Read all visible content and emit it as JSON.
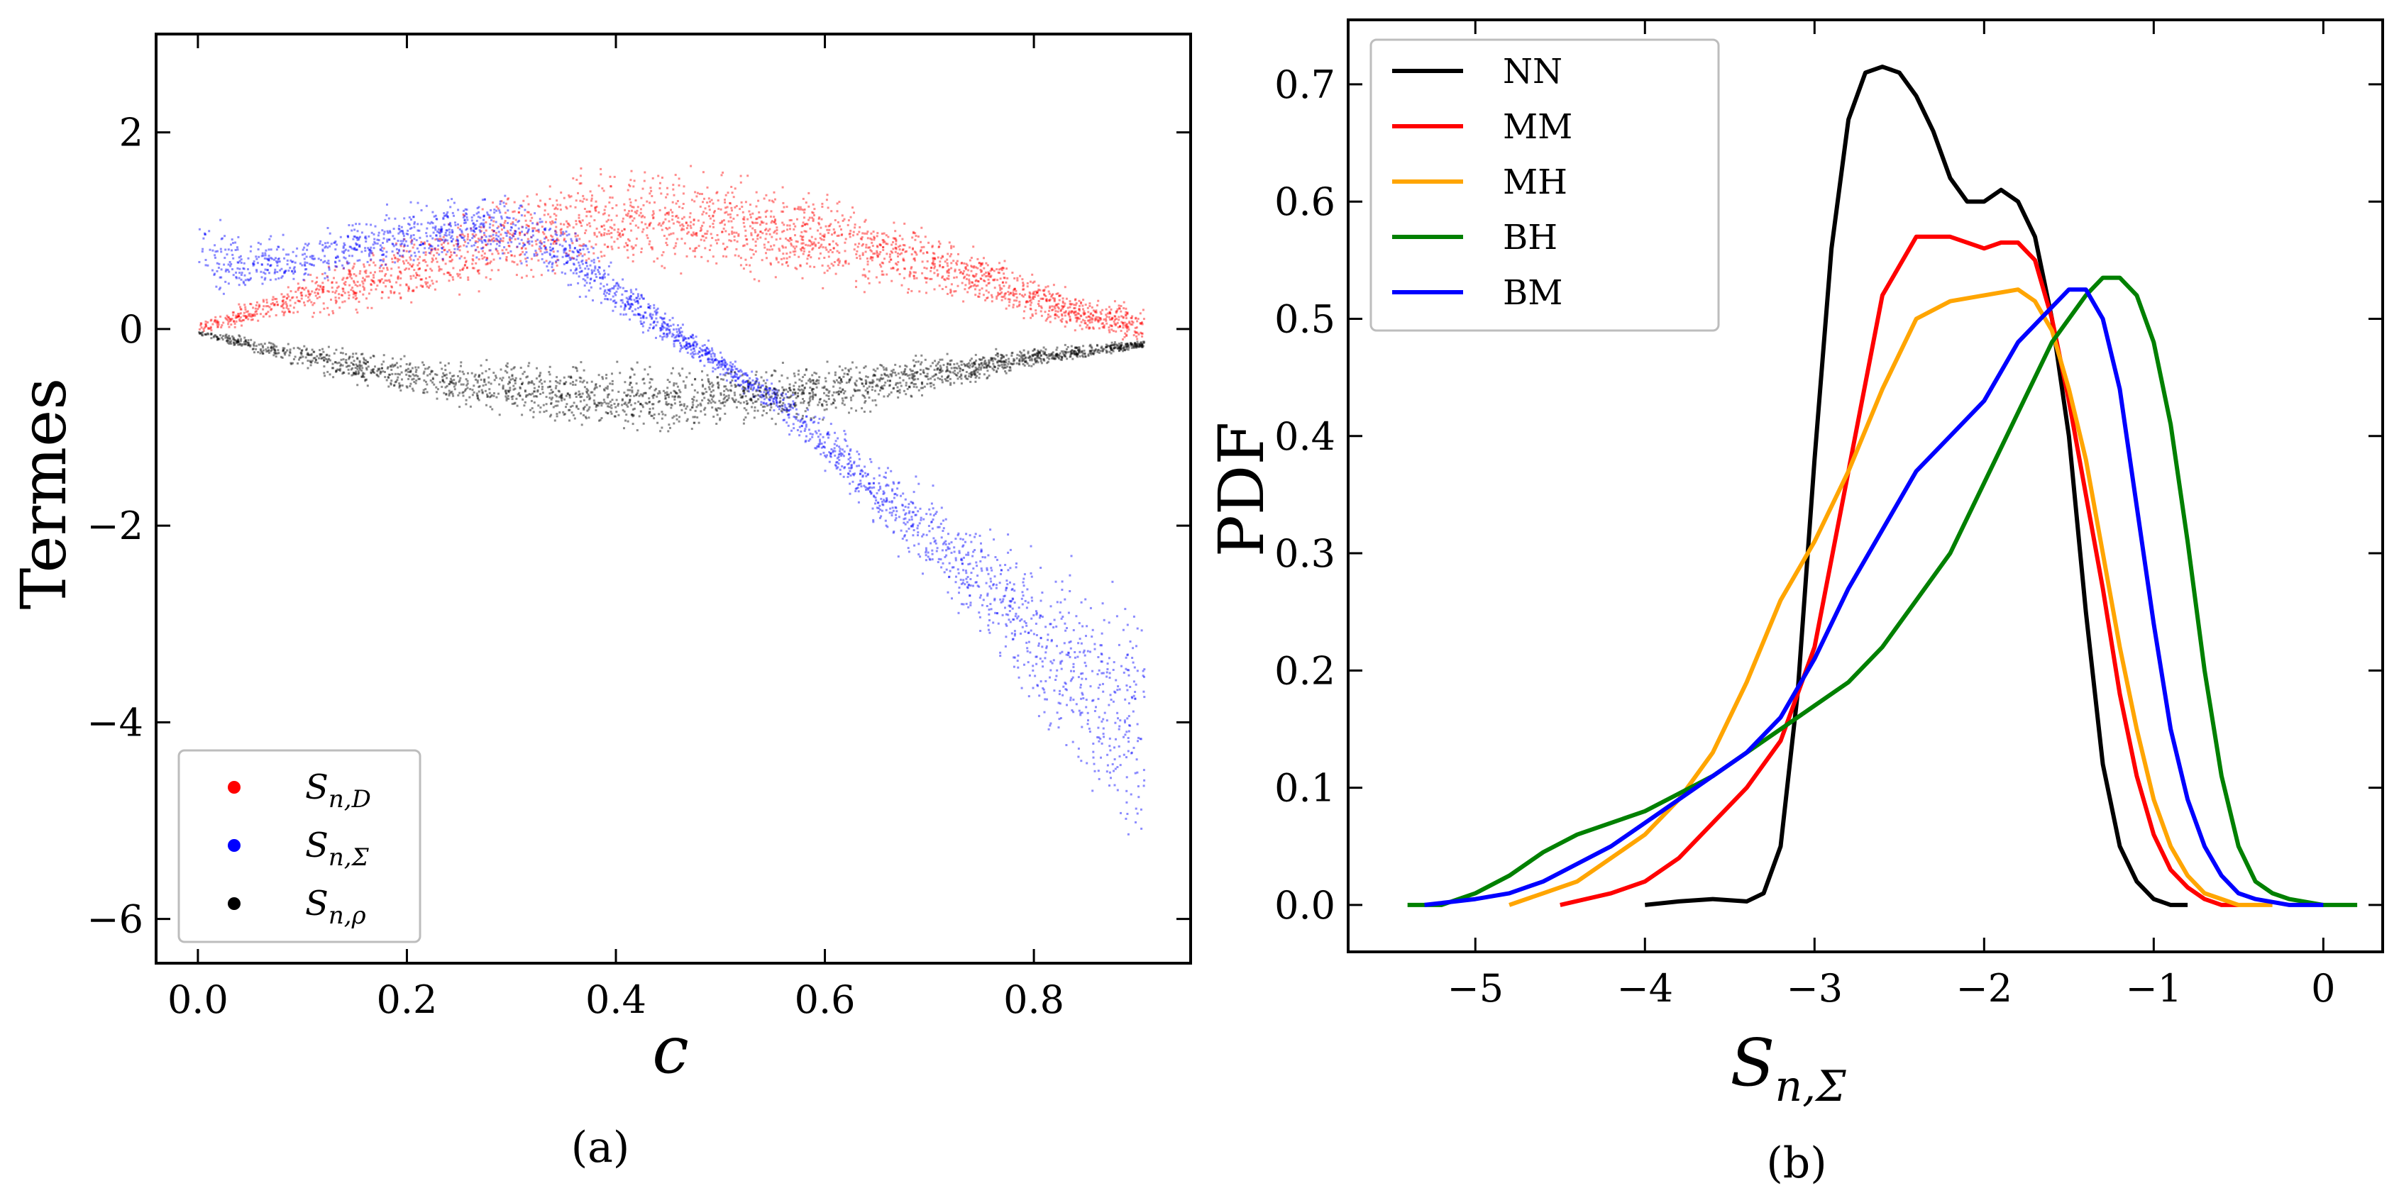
{
  "chart_data": [
    {
      "type": "scatter",
      "caption": "(a)",
      "xlabel": "c",
      "ylabel": "Termes",
      "xlim": [
        -0.04,
        0.95
      ],
      "ylim": [
        -6.45,
        3.0
      ],
      "xticks": [
        0.0,
        0.2,
        0.4,
        0.6,
        0.8
      ],
      "xtick_labels": [
        "0.0",
        "0.2",
        "0.4",
        "0.6",
        "0.8"
      ],
      "yticks": [
        2,
        0,
        -2,
        -4,
        -6
      ],
      "ytick_labels": [
        "2",
        "0",
        "−2",
        "−4",
        "−6"
      ],
      "legend_position": "lower-left",
      "series": [
        {
          "name": "S_{n,D}",
          "label_main": "S",
          "label_sub": "n,D",
          "color": "#ff0000",
          "x": [
            0.0,
            0.05,
            0.1,
            0.15,
            0.2,
            0.25,
            0.3,
            0.35,
            0.4,
            0.45,
            0.5,
            0.55,
            0.6,
            0.65,
            0.7,
            0.75,
            0.8,
            0.85,
            0.9
          ],
          "y_low": [
            -0.05,
            0.0,
            0.05,
            0.1,
            0.15,
            0.25,
            0.35,
            0.4,
            0.45,
            0.45,
            0.45,
            0.4,
            0.35,
            0.3,
            0.25,
            0.2,
            0.05,
            -0.1,
            -0.2
          ],
          "y_high": [
            0.1,
            0.35,
            0.6,
            0.85,
            1.05,
            1.3,
            1.5,
            1.7,
            1.8,
            1.8,
            1.7,
            1.6,
            1.5,
            1.3,
            1.1,
            0.9,
            0.6,
            0.4,
            0.3
          ]
        },
        {
          "name": "S_{n,Σ}",
          "label_main": "S",
          "label_sub": "n,Σ",
          "color": "#0000ff",
          "x": [
            0.0,
            0.05,
            0.1,
            0.15,
            0.2,
            0.25,
            0.3,
            0.35,
            0.4,
            0.45,
            0.5,
            0.55,
            0.6,
            0.65,
            0.7,
            0.75,
            0.8,
            0.85,
            0.9
          ],
          "y_low": [
            0.3,
            0.3,
            0.4,
            0.5,
            0.55,
            0.6,
            0.6,
            0.4,
            0.1,
            -0.2,
            -0.5,
            -0.9,
            -1.5,
            -2.1,
            -2.7,
            -3.3,
            -4.2,
            -5.0,
            -5.8
          ],
          "y_high": [
            1.3,
            1.0,
            1.0,
            1.2,
            1.35,
            1.45,
            1.45,
            1.2,
            0.7,
            0.2,
            -0.2,
            -0.5,
            -0.8,
            -1.2,
            -1.5,
            -1.8,
            -2.0,
            -2.2,
            -2.3
          ]
        },
        {
          "name": "S_{n,ρ}",
          "label_main": "S",
          "label_sub": "n,ρ",
          "color": "#000000",
          "x": [
            0.0,
            0.05,
            0.1,
            0.15,
            0.2,
            0.25,
            0.3,
            0.35,
            0.4,
            0.45,
            0.5,
            0.55,
            0.6,
            0.65,
            0.7,
            0.75,
            0.8,
            0.85,
            0.9
          ],
          "y_low": [
            -0.05,
            -0.25,
            -0.45,
            -0.6,
            -0.75,
            -0.85,
            -0.95,
            -1.05,
            -1.1,
            -1.12,
            -1.1,
            -1.05,
            -0.95,
            -0.85,
            -0.7,
            -0.55,
            -0.4,
            -0.3,
            -0.2
          ],
          "y_high": [
            0.0,
            -0.05,
            -0.1,
            -0.15,
            -0.2,
            -0.22,
            -0.25,
            -0.27,
            -0.28,
            -0.28,
            -0.28,
            -0.27,
            -0.25,
            -0.22,
            -0.2,
            -0.17,
            -0.15,
            -0.12,
            -0.1
          ]
        }
      ]
    },
    {
      "type": "line",
      "caption": "(b)",
      "xlabel_main": "S",
      "xlabel_sub": "n,Σ",
      "ylabel": "PDF",
      "xlim": [
        -5.75,
        0.35
      ],
      "ylim": [
        -0.04,
        0.755
      ],
      "xticks": [
        -5,
        -4,
        -3,
        -2,
        -1,
        0
      ],
      "xtick_labels": [
        "−5",
        "−4",
        "−3",
        "−2",
        "−1",
        "0"
      ],
      "yticks": [
        0.0,
        0.1,
        0.2,
        0.3,
        0.4,
        0.5,
        0.6,
        0.7
      ],
      "ytick_labels": [
        "0.0",
        "0.1",
        "0.2",
        "0.3",
        "0.4",
        "0.5",
        "0.6",
        "0.7"
      ],
      "legend_position": "upper-left",
      "series": [
        {
          "name": "NN",
          "color": "#000000",
          "x": [
            -4.0,
            -3.8,
            -3.6,
            -3.4,
            -3.3,
            -3.2,
            -3.1,
            -3.0,
            -2.9,
            -2.8,
            -2.7,
            -2.6,
            -2.5,
            -2.4,
            -2.3,
            -2.2,
            -2.1,
            -2.0,
            -1.9,
            -1.8,
            -1.7,
            -1.6,
            -1.5,
            -1.4,
            -1.3,
            -1.2,
            -1.1,
            -1.0,
            -0.9,
            -0.8
          ],
          "y": [
            0.0,
            0.003,
            0.005,
            0.003,
            0.01,
            0.05,
            0.18,
            0.38,
            0.56,
            0.67,
            0.71,
            0.715,
            0.71,
            0.69,
            0.66,
            0.62,
            0.6,
            0.6,
            0.61,
            0.6,
            0.57,
            0.5,
            0.4,
            0.25,
            0.12,
            0.05,
            0.02,
            0.005,
            0.0,
            0.0
          ]
        },
        {
          "name": "MM",
          "color": "#ff0000",
          "x": [
            -4.5,
            -4.2,
            -4.0,
            -3.8,
            -3.6,
            -3.4,
            -3.2,
            -3.0,
            -2.8,
            -2.6,
            -2.4,
            -2.2,
            -2.0,
            -1.9,
            -1.8,
            -1.7,
            -1.6,
            -1.5,
            -1.4,
            -1.3,
            -1.2,
            -1.1,
            -1.0,
            -0.9,
            -0.8,
            -0.7,
            -0.6,
            -0.5
          ],
          "y": [
            0.0,
            0.01,
            0.02,
            0.04,
            0.07,
            0.1,
            0.14,
            0.22,
            0.37,
            0.52,
            0.57,
            0.57,
            0.56,
            0.565,
            0.565,
            0.55,
            0.5,
            0.43,
            0.35,
            0.27,
            0.18,
            0.11,
            0.06,
            0.03,
            0.015,
            0.005,
            0.0,
            0.0
          ]
        },
        {
          "name": "MH",
          "color": "#ffa500",
          "x": [
            -4.8,
            -4.6,
            -4.4,
            -4.2,
            -4.0,
            -3.8,
            -3.6,
            -3.4,
            -3.2,
            -3.0,
            -2.8,
            -2.6,
            -2.4,
            -2.2,
            -2.0,
            -1.8,
            -1.7,
            -1.6,
            -1.5,
            -1.4,
            -1.3,
            -1.2,
            -1.1,
            -1.0,
            -0.9,
            -0.8,
            -0.7,
            -0.6,
            -0.5,
            -0.3
          ],
          "y": [
            0.0,
            0.01,
            0.02,
            0.04,
            0.06,
            0.09,
            0.13,
            0.19,
            0.26,
            0.31,
            0.37,
            0.44,
            0.5,
            0.515,
            0.52,
            0.525,
            0.515,
            0.49,
            0.44,
            0.38,
            0.3,
            0.22,
            0.15,
            0.09,
            0.05,
            0.025,
            0.01,
            0.005,
            0.0,
            0.0
          ]
        },
        {
          "name": "BH",
          "color": "#008000",
          "x": [
            -5.4,
            -5.2,
            -5.0,
            -4.8,
            -4.6,
            -4.4,
            -4.2,
            -4.0,
            -3.8,
            -3.6,
            -3.4,
            -3.2,
            -3.0,
            -2.8,
            -2.6,
            -2.4,
            -2.2,
            -2.0,
            -1.8,
            -1.6,
            -1.4,
            -1.3,
            -1.2,
            -1.1,
            -1.0,
            -0.9,
            -0.8,
            -0.7,
            -0.6,
            -0.5,
            -0.4,
            -0.3,
            -0.2,
            0.0,
            0.2
          ],
          "y": [
            0.0,
            0.0,
            0.01,
            0.025,
            0.045,
            0.06,
            0.07,
            0.08,
            0.095,
            0.11,
            0.13,
            0.15,
            0.17,
            0.19,
            0.22,
            0.26,
            0.3,
            0.36,
            0.42,
            0.48,
            0.52,
            0.535,
            0.535,
            0.52,
            0.48,
            0.41,
            0.31,
            0.2,
            0.11,
            0.05,
            0.02,
            0.01,
            0.005,
            0.0,
            0.0
          ]
        },
        {
          "name": "BM",
          "color": "#0000ff",
          "x": [
            -5.3,
            -5.0,
            -4.8,
            -4.6,
            -4.4,
            -4.2,
            -4.0,
            -3.8,
            -3.6,
            -3.4,
            -3.2,
            -3.0,
            -2.8,
            -2.6,
            -2.4,
            -2.2,
            -2.0,
            -1.8,
            -1.6,
            -1.5,
            -1.4,
            -1.3,
            -1.2,
            -1.1,
            -1.0,
            -0.9,
            -0.8,
            -0.7,
            -0.6,
            -0.5,
            -0.4,
            -0.2,
            0.0
          ],
          "y": [
            0.0,
            0.005,
            0.01,
            0.02,
            0.035,
            0.05,
            0.07,
            0.09,
            0.11,
            0.13,
            0.16,
            0.21,
            0.27,
            0.32,
            0.37,
            0.4,
            0.43,
            0.48,
            0.51,
            0.525,
            0.525,
            0.5,
            0.44,
            0.34,
            0.24,
            0.15,
            0.09,
            0.05,
            0.025,
            0.01,
            0.005,
            0.0,
            0.0
          ]
        }
      ]
    }
  ]
}
